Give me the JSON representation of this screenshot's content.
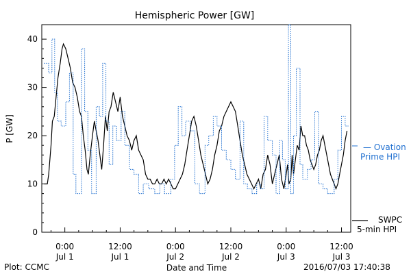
{
  "footer": {
    "plot_credit": "Plot: CCMC",
    "timestamp": "2016/07/03 17:40:38"
  },
  "chart_data": {
    "type": "line",
    "title": "Hemispheric Power [GW]",
    "xlabel": "Date and Time",
    "ylabel": "P [GW]",
    "ylim": [
      0,
      43
    ],
    "xlim": [
      -5,
      62
    ],
    "x_unit": "hours since 2016-07-01 00:00 UT",
    "yticks": [
      0,
      10,
      20,
      30,
      40
    ],
    "xticks": [
      {
        "x": 0,
        "time": "0:00",
        "date": "Jul 1"
      },
      {
        "x": 12,
        "time": "12:00",
        "date": "Jul 1"
      },
      {
        "x": 24,
        "time": "0:00",
        "date": "Jul 2"
      },
      {
        "x": 36,
        "time": "12:00",
        "date": "Jul 2"
      },
      {
        "x": 48,
        "time": "0:00",
        "date": "Jul 3"
      },
      {
        "x": 60,
        "time": "12:00",
        "date": "Jul 3"
      }
    ],
    "grid": false,
    "colors": {
      "swpc": "#000000",
      "ovation": "#1f6fd0"
    },
    "series": [
      {
        "name": "SWPC 5-min HPI",
        "label_lines": [
          "SWPC",
          "5-min HPI"
        ],
        "style": "solid",
        "points": [
          [
            -4.5,
            10
          ],
          [
            -3.8,
            10
          ],
          [
            -3.5,
            12
          ],
          [
            -3.0,
            18
          ],
          [
            -2.7,
            23
          ],
          [
            -2.3,
            24
          ],
          [
            -2.0,
            27
          ],
          [
            -1.5,
            32
          ],
          [
            -1.0,
            35
          ],
          [
            -0.6,
            38
          ],
          [
            -0.3,
            39
          ],
          [
            0.2,
            38
          ],
          [
            0.7,
            36
          ],
          [
            1.2,
            34
          ],
          [
            1.7,
            31
          ],
          [
            2.2,
            30
          ],
          [
            2.7,
            28
          ],
          [
            3.2,
            25
          ],
          [
            3.6,
            24
          ],
          [
            4.0,
            20
          ],
          [
            4.4,
            17
          ],
          [
            4.8,
            13
          ],
          [
            5.1,
            12
          ],
          [
            5.5,
            16
          ],
          [
            6.0,
            20
          ],
          [
            6.4,
            23
          ],
          [
            6.8,
            21
          ],
          [
            7.2,
            19
          ],
          [
            7.6,
            16
          ],
          [
            8.0,
            13
          ],
          [
            8.4,
            18
          ],
          [
            8.8,
            24
          ],
          [
            9.2,
            21
          ],
          [
            9.6,
            25
          ],
          [
            10.0,
            26
          ],
          [
            10.5,
            29
          ],
          [
            11.0,
            27
          ],
          [
            11.5,
            25
          ],
          [
            12.0,
            28
          ],
          [
            12.5,
            24
          ],
          [
            13.0,
            22
          ],
          [
            13.5,
            20
          ],
          [
            14.0,
            19
          ],
          [
            14.5,
            17
          ],
          [
            15.0,
            19
          ],
          [
            15.5,
            20
          ],
          [
            16.0,
            17
          ],
          [
            16.5,
            16
          ],
          [
            17.0,
            15
          ],
          [
            17.5,
            12
          ],
          [
            18.0,
            11
          ],
          [
            18.5,
            11
          ],
          [
            19.0,
            10
          ],
          [
            19.5,
            10
          ],
          [
            20.0,
            11
          ],
          [
            20.5,
            10
          ],
          [
            21.0,
            10
          ],
          [
            21.5,
            11
          ],
          [
            22.0,
            10
          ],
          [
            22.5,
            11
          ],
          [
            23.0,
            10
          ],
          [
            23.5,
            9
          ],
          [
            24.0,
            9
          ],
          [
            24.5,
            10
          ],
          [
            25.0,
            11
          ],
          [
            25.5,
            12
          ],
          [
            26.0,
            14
          ],
          [
            26.5,
            17
          ],
          [
            27.0,
            20
          ],
          [
            27.5,
            23
          ],
          [
            28.0,
            24
          ],
          [
            28.5,
            22
          ],
          [
            29.0,
            19
          ],
          [
            29.5,
            16
          ],
          [
            30.0,
            14
          ],
          [
            30.5,
            12
          ],
          [
            31.0,
            10
          ],
          [
            31.5,
            11
          ],
          [
            32.0,
            13
          ],
          [
            32.5,
            16
          ],
          [
            33.0,
            18
          ],
          [
            33.5,
            21
          ],
          [
            34.0,
            22
          ],
          [
            34.5,
            24
          ],
          [
            35.0,
            25
          ],
          [
            35.5,
            26
          ],
          [
            36.0,
            27
          ],
          [
            36.5,
            26
          ],
          [
            37.0,
            25
          ],
          [
            37.5,
            22
          ],
          [
            38.0,
            19
          ],
          [
            38.5,
            16
          ],
          [
            39.0,
            14
          ],
          [
            39.5,
            12
          ],
          [
            40.0,
            11
          ],
          [
            40.5,
            10
          ],
          [
            41.0,
            9
          ],
          [
            41.5,
            10
          ],
          [
            42.0,
            11
          ],
          [
            42.5,
            9
          ],
          [
            43.0,
            12
          ],
          [
            43.5,
            13
          ],
          [
            44.0,
            16
          ],
          [
            44.5,
            14
          ],
          [
            45.0,
            10
          ],
          [
            45.5,
            12
          ],
          [
            46.0,
            14
          ],
          [
            46.5,
            16
          ],
          [
            47.0,
            11
          ],
          [
            47.5,
            9
          ],
          [
            48.0,
            12
          ],
          [
            48.3,
            14
          ],
          [
            48.6,
            10
          ],
          [
            49.0,
            11
          ],
          [
            49.3,
            16
          ],
          [
            49.6,
            12
          ],
          [
            50.0,
            15
          ],
          [
            50.4,
            18
          ],
          [
            50.8,
            17
          ],
          [
            51.2,
            22
          ],
          [
            51.6,
            20
          ],
          [
            52.0,
            20
          ],
          [
            52.4,
            18
          ],
          [
            52.8,
            17
          ],
          [
            53.2,
            15
          ],
          [
            53.6,
            14
          ],
          [
            54.0,
            13
          ],
          [
            54.4,
            14
          ],
          [
            54.8,
            16
          ],
          [
            55.2,
            17
          ],
          [
            55.6,
            19
          ],
          [
            56.0,
            20
          ],
          [
            56.4,
            18
          ],
          [
            56.8,
            16
          ],
          [
            57.2,
            14
          ],
          [
            57.6,
            12
          ],
          [
            58.0,
            11
          ],
          [
            58.4,
            10
          ],
          [
            58.8,
            9
          ],
          [
            59.2,
            10
          ],
          [
            59.6,
            12
          ],
          [
            60.0,
            14
          ],
          [
            60.4,
            16
          ],
          [
            60.8,
            19
          ],
          [
            61.2,
            21
          ]
        ]
      },
      {
        "name": "Ovation Prime HPI",
        "label_lines": [
          "— Ovation",
          "Prime HPI"
        ],
        "style": "dotted",
        "points": [
          [
            -4.5,
            35
          ],
          [
            -3.5,
            35
          ],
          [
            -3.5,
            33
          ],
          [
            -2.8,
            33
          ],
          [
            -2.8,
            40
          ],
          [
            -2.2,
            40
          ],
          [
            -2.2,
            29
          ],
          [
            -1.6,
            29
          ],
          [
            -1.6,
            23
          ],
          [
            -0.8,
            23
          ],
          [
            -0.8,
            22
          ],
          [
            0.2,
            22
          ],
          [
            0.2,
            27
          ],
          [
            1.0,
            27
          ],
          [
            1.0,
            33
          ],
          [
            1.8,
            33
          ],
          [
            1.8,
            12
          ],
          [
            2.4,
            12
          ],
          [
            2.4,
            8
          ],
          [
            3.6,
            8
          ],
          [
            3.6,
            38
          ],
          [
            4.3,
            38
          ],
          [
            4.3,
            25
          ],
          [
            5.0,
            25
          ],
          [
            5.0,
            17
          ],
          [
            5.8,
            17
          ],
          [
            5.8,
            8
          ],
          [
            6.8,
            8
          ],
          [
            6.8,
            26
          ],
          [
            7.5,
            26
          ],
          [
            7.5,
            24
          ],
          [
            8.2,
            24
          ],
          [
            8.2,
            35
          ],
          [
            8.9,
            35
          ],
          [
            8.9,
            23
          ],
          [
            9.6,
            23
          ],
          [
            9.6,
            14
          ],
          [
            10.4,
            14
          ],
          [
            10.4,
            22
          ],
          [
            11.2,
            22
          ],
          [
            11.2,
            19
          ],
          [
            12.2,
            19
          ],
          [
            12.2,
            25
          ],
          [
            13.0,
            25
          ],
          [
            13.0,
            18
          ],
          [
            14.0,
            18
          ],
          [
            14.0,
            13
          ],
          [
            15.0,
            13
          ],
          [
            15.0,
            12
          ],
          [
            16.0,
            12
          ],
          [
            16.0,
            8
          ],
          [
            17.0,
            8
          ],
          [
            17.0,
            10
          ],
          [
            18.2,
            10
          ],
          [
            18.2,
            9
          ],
          [
            19.5,
            9
          ],
          [
            19.5,
            8
          ],
          [
            20.6,
            8
          ],
          [
            20.6,
            10
          ],
          [
            21.6,
            10
          ],
          [
            21.6,
            8
          ],
          [
            23.0,
            8
          ],
          [
            23.0,
            11
          ],
          [
            23.8,
            11
          ],
          [
            23.8,
            18
          ],
          [
            24.6,
            18
          ],
          [
            24.6,
            26
          ],
          [
            25.4,
            26
          ],
          [
            25.4,
            20
          ],
          [
            26.2,
            20
          ],
          [
            26.2,
            23
          ],
          [
            27.2,
            23
          ],
          [
            27.2,
            21
          ],
          [
            28.2,
            21
          ],
          [
            28.2,
            10
          ],
          [
            29.2,
            10
          ],
          [
            29.2,
            8
          ],
          [
            30.4,
            8
          ],
          [
            30.4,
            18
          ],
          [
            31.2,
            18
          ],
          [
            31.2,
            20
          ],
          [
            32.2,
            20
          ],
          [
            32.2,
            24
          ],
          [
            33.0,
            24
          ],
          [
            33.0,
            22
          ],
          [
            34.0,
            22
          ],
          [
            34.0,
            17
          ],
          [
            35.0,
            17
          ],
          [
            35.0,
            15
          ],
          [
            36.0,
            15
          ],
          [
            36.0,
            13
          ],
          [
            37.0,
            13
          ],
          [
            37.0,
            11
          ],
          [
            38.0,
            11
          ],
          [
            38.0,
            23
          ],
          [
            38.8,
            23
          ],
          [
            38.8,
            10
          ],
          [
            39.6,
            10
          ],
          [
            39.6,
            9
          ],
          [
            40.6,
            9
          ],
          [
            40.6,
            8
          ],
          [
            41.6,
            8
          ],
          [
            41.6,
            10
          ],
          [
            42.4,
            10
          ],
          [
            42.4,
            9
          ],
          [
            43.2,
            9
          ],
          [
            43.2,
            24
          ],
          [
            44.0,
            24
          ],
          [
            44.0,
            19
          ],
          [
            45.0,
            19
          ],
          [
            45.0,
            16
          ],
          [
            45.8,
            16
          ],
          [
            45.8,
            8
          ],
          [
            46.6,
            8
          ],
          [
            46.6,
            19
          ],
          [
            47.2,
            19
          ],
          [
            47.2,
            15
          ],
          [
            47.8,
            15
          ],
          [
            47.8,
            9
          ],
          [
            48.5,
            9
          ],
          [
            48.5,
            43
          ],
          [
            49.0,
            43
          ],
          [
            49.0,
            8
          ],
          [
            49.6,
            8
          ],
          [
            49.6,
            20
          ],
          [
            50.2,
            20
          ],
          [
            50.2,
            34
          ],
          [
            51.0,
            34
          ],
          [
            51.0,
            14
          ],
          [
            51.6,
            14
          ],
          [
            51.6,
            11
          ],
          [
            52.6,
            11
          ],
          [
            52.6,
            13
          ],
          [
            53.4,
            13
          ],
          [
            53.4,
            15
          ],
          [
            54.2,
            15
          ],
          [
            54.2,
            25
          ],
          [
            55.0,
            25
          ],
          [
            55.0,
            10
          ],
          [
            56.0,
            10
          ],
          [
            56.0,
            9
          ],
          [
            57.0,
            9
          ],
          [
            57.0,
            8
          ],
          [
            58.4,
            8
          ],
          [
            58.4,
            11
          ],
          [
            59.2,
            11
          ],
          [
            59.2,
            17
          ],
          [
            60.0,
            17
          ],
          [
            60.0,
            24
          ],
          [
            60.8,
            24
          ],
          [
            60.8,
            22
          ],
          [
            61.5,
            22
          ]
        ]
      }
    ]
  }
}
